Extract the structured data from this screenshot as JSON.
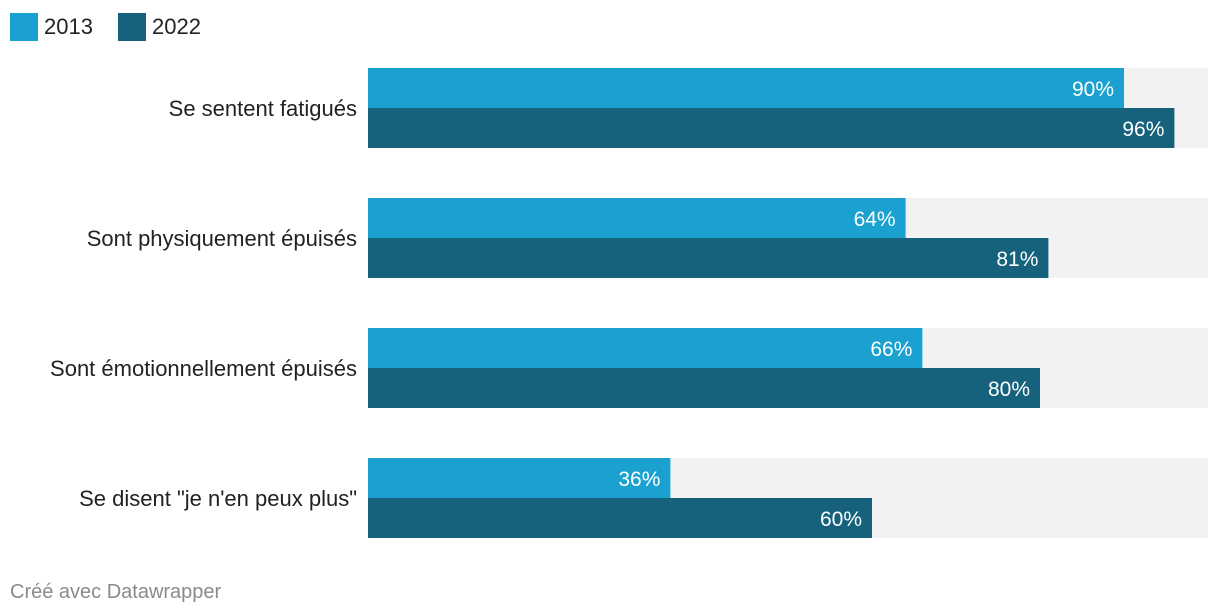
{
  "chart_data": {
    "type": "bar",
    "orientation": "horizontal",
    "categories": [
      "Se sentent fatigués",
      "Sont physiquement épuisés",
      "Sont émotionnellement épuisés",
      "Se disent \"je n'en peux plus\""
    ],
    "series": [
      {
        "name": "2013",
        "values": [
          90,
          64,
          66,
          36
        ],
        "color": "#1aa1d0"
      },
      {
        "name": "2022",
        "values": [
          96,
          81,
          80,
          60
        ],
        "color": "#16627c"
      }
    ],
    "value_suffix": "%",
    "xlim": [
      0,
      100
    ],
    "background_color": "#f2f2f2",
    "legend_position": "top-left",
    "grid": false
  },
  "footer": {
    "credit": "Créé avec Datawrapper"
  }
}
